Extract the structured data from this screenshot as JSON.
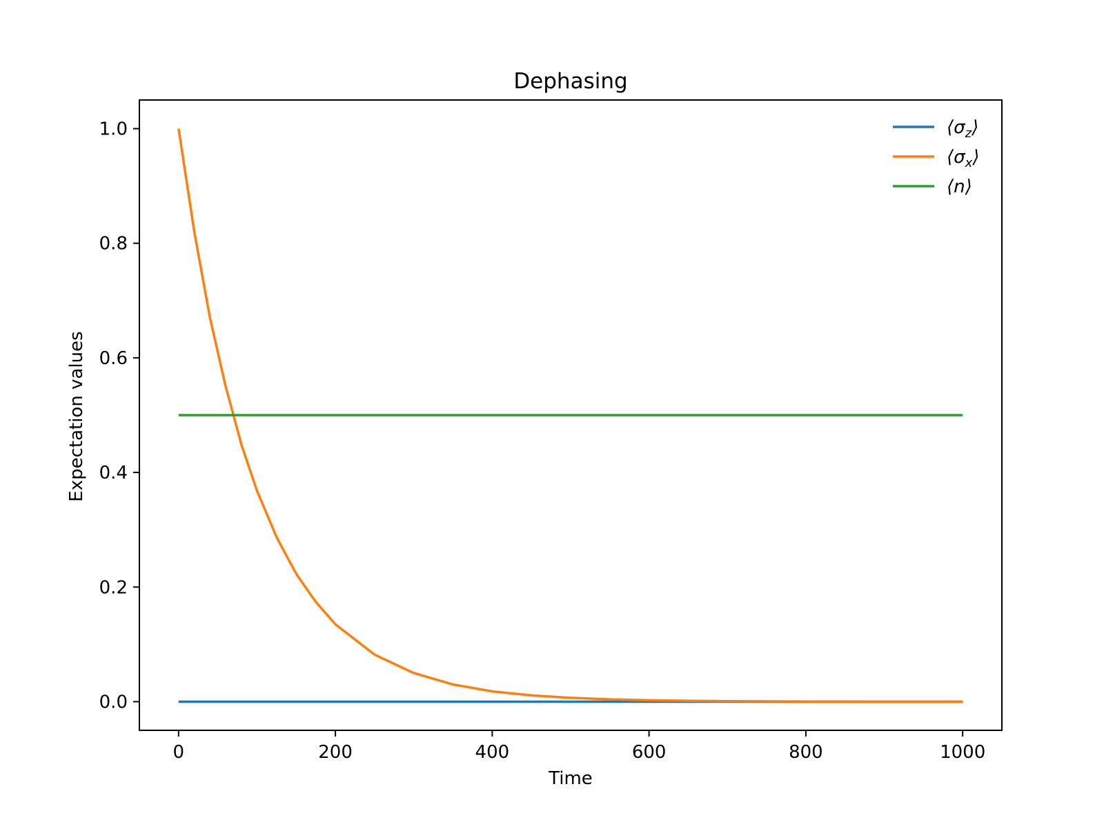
{
  "chart_data": {
    "type": "line",
    "title": "Dephasing",
    "xlabel": "Time",
    "ylabel": "Expectation values",
    "xlim": [
      -50,
      1050
    ],
    "ylim": [
      -0.05,
      1.05
    ],
    "xticks": [
      0,
      200,
      400,
      600,
      800,
      1000
    ],
    "xtick_labels": [
      "0",
      "200",
      "400",
      "600",
      "800",
      "1000"
    ],
    "yticks": [
      0.0,
      0.2,
      0.4,
      0.6,
      0.8,
      1.0
    ],
    "ytick_labels": [
      "0.0",
      "0.2",
      "0.4",
      "0.6",
      "0.8",
      "1.0"
    ],
    "grid": false,
    "legend_position": "top-right",
    "series": [
      {
        "name": "⟨σz⟩",
        "symbol": "σ",
        "sub": "z",
        "color": "#1f77b4",
        "x": [
          0,
          1000
        ],
        "y": [
          0.0,
          0.0
        ]
      },
      {
        "name": "⟨σx⟩",
        "symbol": "σ",
        "sub": "x",
        "color": "#ff7f0e",
        "x": [
          0,
          20,
          40,
          60,
          70,
          80,
          100,
          125,
          150,
          175,
          200,
          250,
          300,
          350,
          400,
          450,
          500,
          550,
          600,
          650,
          700,
          800,
          900,
          1000
        ],
        "y": [
          1.0,
          0.82,
          0.67,
          0.55,
          0.5,
          0.449,
          0.368,
          0.287,
          0.223,
          0.174,
          0.135,
          0.082,
          0.05,
          0.03,
          0.018,
          0.011,
          0.0067,
          0.0041,
          0.0025,
          0.0015,
          0.0009,
          0.0003,
          0.0001,
          0.0
        ]
      },
      {
        "name": "⟨n⟩",
        "symbol": "n",
        "sub": "",
        "color": "#2ca02c",
        "x": [
          0,
          1000
        ],
        "y": [
          0.5,
          0.5
        ]
      }
    ]
  }
}
